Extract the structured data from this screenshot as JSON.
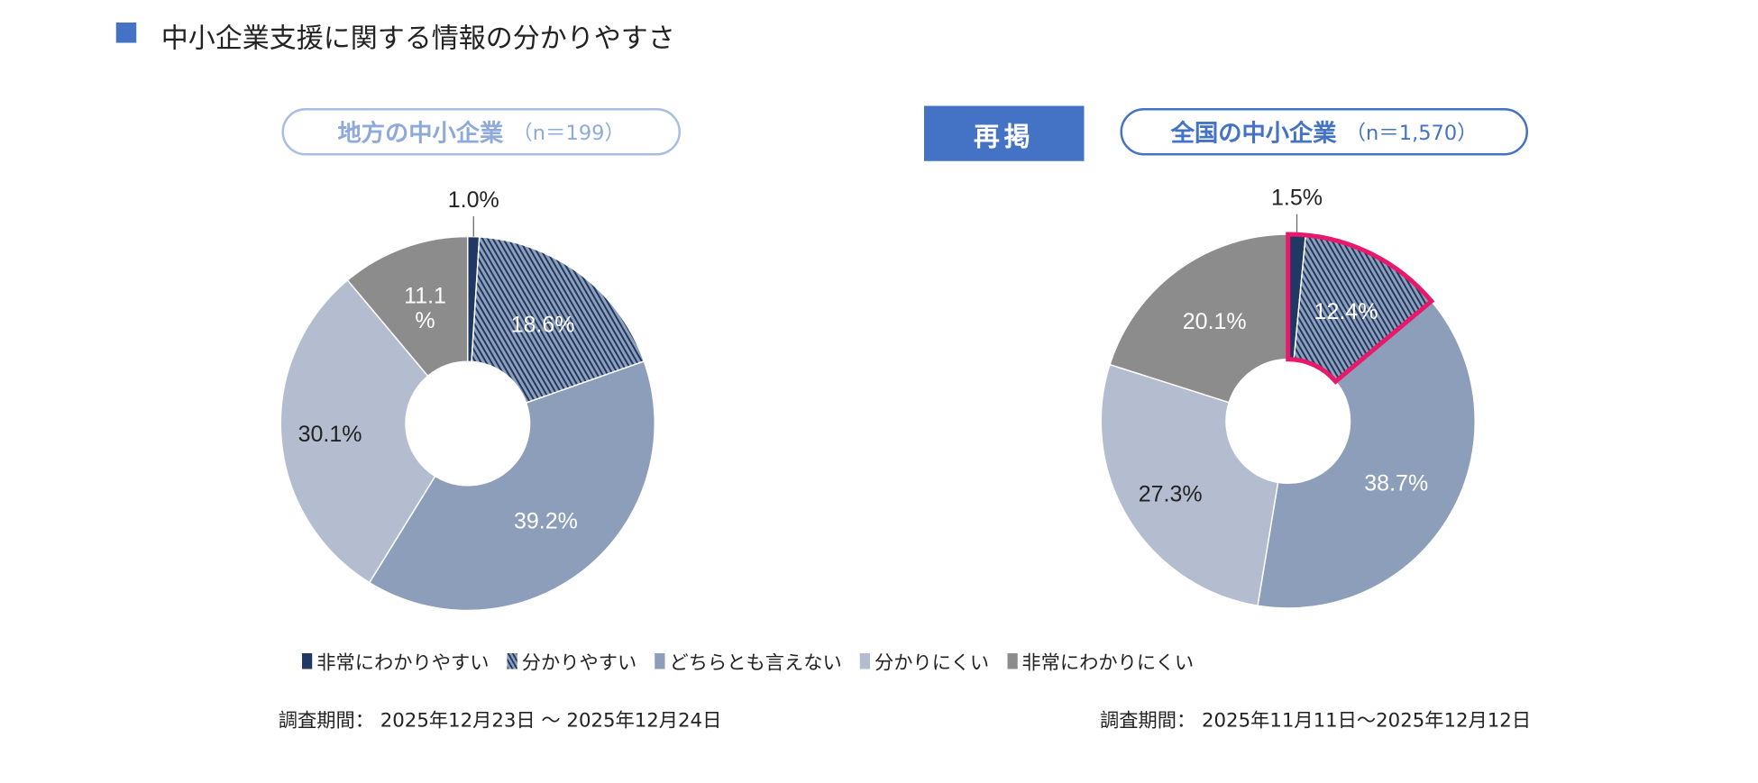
{
  "title": "中小企業支援に関する情報の分かりやすさ",
  "repost_label": "再掲",
  "colors": {
    "accent": "#4472c4",
    "highlight": "#e8196a",
    "slices": [
      "#1f3864",
      "#8f9fb8",
      "#8c9eb9",
      "#b4bcd0",
      "#8c8c8c"
    ],
    "hatch_stripe": "#1f3864"
  },
  "legend": [
    "非常にわかりやすい",
    "分かりやすい",
    "どちらとも言えない",
    "分かりにくい",
    "非常にわかりにくい"
  ],
  "chart_data": [
    {
      "type": "pie",
      "variant": "donut",
      "title": "地方の中小企業",
      "n_label": "（n＝199）",
      "categories": [
        "非常にわかりやすい",
        "分かりやすい",
        "どちらとも言えない",
        "分かりにくい",
        "非常にわかりにくい"
      ],
      "values": [
        1.0,
        18.6,
        39.2,
        30.1,
        11.1
      ],
      "labels": [
        "1.0%",
        "18.6%",
        "39.2%",
        "30.1%",
        "11.1\n%"
      ],
      "period": "調査期間： 2025年12月23日 ～ 2025年12月24日"
    },
    {
      "type": "pie",
      "variant": "donut",
      "title": "全国の中小企業",
      "n_label": "（n＝1,570）",
      "categories": [
        "非常にわかりやすい",
        "分かりやすい",
        "どちらとも言えない",
        "分かりにくい",
        "非常にわかりにくい"
      ],
      "values": [
        1.5,
        12.4,
        38.7,
        27.3,
        20.1
      ],
      "labels": [
        "1.5%",
        "12.4%",
        "38.7%",
        "27.3%",
        "20.1%"
      ],
      "highlighted_categories": [
        "非常にわかりやすい",
        "分かりやすい"
      ],
      "period": "調査期間： 2025年11月11日～2025年12月12日"
    }
  ]
}
